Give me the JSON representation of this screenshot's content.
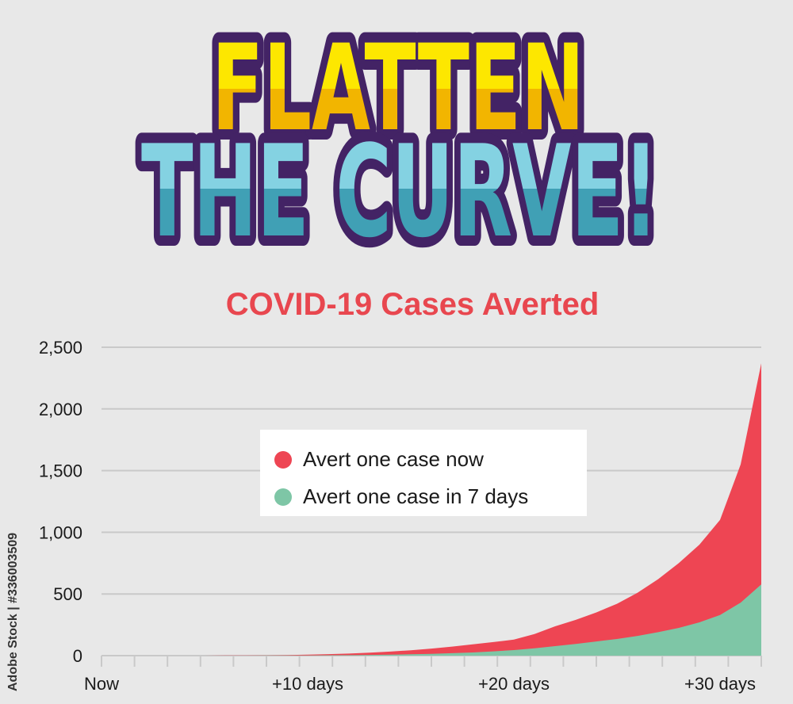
{
  "logo": {
    "line1": "FLATTEN",
    "line2": "THE CURVE!"
  },
  "watermark": "Adobe Stock | #336003509",
  "chart_data": {
    "type": "area",
    "title": "COVID-19 Cases Averted",
    "xlabel": "",
    "ylabel": "",
    "x_unit": "days from now",
    "xlim": [
      0,
      32
    ],
    "ylim": [
      0,
      2500
    ],
    "yticks": [
      0,
      500,
      1000,
      1500,
      2000,
      2500
    ],
    "ytick_labels": [
      "0",
      "500",
      "1,000",
      "1,500",
      "2,000",
      "2,500"
    ],
    "xticks": [
      0,
      10,
      20,
      30
    ],
    "xtick_labels": [
      "Now",
      "+10 days",
      "+20 days",
      "+30 days"
    ],
    "minor_tick_count": 20,
    "grid": true,
    "legend_placement": "center",
    "x": [
      0,
      1,
      2,
      3,
      4,
      5,
      6,
      7,
      8,
      9,
      10,
      11,
      12,
      13,
      14,
      15,
      16,
      17,
      18,
      19,
      20,
      21,
      22,
      23,
      24,
      25,
      26,
      27,
      28,
      29,
      30,
      31,
      32
    ],
    "series": [
      {
        "name": "Avert one case now",
        "color": "#ee4553",
        "values": [
          0,
          0,
          0,
          0,
          0,
          0,
          1,
          2,
          3,
          5,
          8,
          12,
          17,
          24,
          33,
          44,
          57,
          73,
          91,
          110,
          130,
          175,
          238,
          290,
          350,
          420,
          510,
          620,
          750,
          900,
          1100,
          1550,
          2370
        ]
      },
      {
        "name": "Avert one case in 7 days",
        "color": "#7ec6a6",
        "values": [
          0,
          0,
          0,
          0,
          0,
          0,
          0,
          0,
          1,
          1,
          2,
          3,
          4,
          6,
          8,
          11,
          15,
          20,
          26,
          35,
          45,
          60,
          77,
          95,
          115,
          135,
          160,
          190,
          225,
          270,
          330,
          430,
          578
        ]
      }
    ]
  }
}
